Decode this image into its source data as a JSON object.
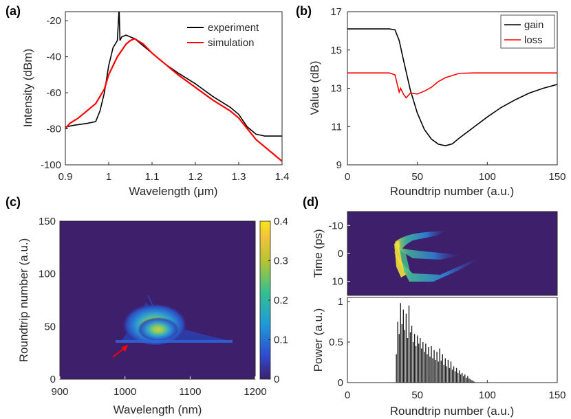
{
  "panels": {
    "a": "(a)",
    "b": "(b)",
    "c": "(c)",
    "d": "(d)"
  },
  "chart_data": [
    {
      "id": "a",
      "type": "line",
      "xlabel": "Wavelength (μm)",
      "ylabel": "Intensity (dBm)",
      "xlim": [
        0.9,
        1.4
      ],
      "ylim": [
        -100,
        -15
      ],
      "xticks": [
        "0.9",
        "1",
        "1.1",
        "1.2",
        "1.3",
        "1.4"
      ],
      "yticks": [
        "-100",
        "-80",
        "-60",
        "-40",
        "-20"
      ],
      "legend_position": "top-right",
      "series": [
        {
          "name": "experiment",
          "color": "#000000",
          "x": [
            0.9,
            0.92,
            0.95,
            0.97,
            0.98,
            0.99,
            1.0,
            1.01,
            1.02,
            1.024,
            1.026,
            1.03,
            1.04,
            1.05,
            1.06,
            1.08,
            1.1,
            1.13,
            1.16,
            1.2,
            1.24,
            1.28,
            1.3,
            1.32,
            1.34,
            1.36,
            1.38,
            1.4
          ],
          "y": [
            -79,
            -78,
            -77,
            -76,
            -70,
            -60,
            -45,
            -35,
            -31,
            -13,
            -31,
            -29,
            -28,
            -29,
            -30,
            -34,
            -38,
            -44,
            -49,
            -55,
            -62,
            -68,
            -72,
            -79,
            -83,
            -84,
            -84,
            -84
          ]
        },
        {
          "name": "simulation",
          "color": "#ff0000",
          "x": [
            0.9,
            0.91,
            0.93,
            0.95,
            0.97,
            0.98,
            0.99,
            1.0,
            1.02,
            1.04,
            1.05,
            1.06,
            1.08,
            1.1,
            1.13,
            1.16,
            1.2,
            1.24,
            1.28,
            1.3,
            1.32,
            1.34,
            1.36,
            1.38,
            1.4
          ],
          "y": [
            -80,
            -77,
            -74,
            -70,
            -66,
            -62,
            -58,
            -50,
            -40,
            -33,
            -31,
            -30,
            -33,
            -38,
            -44,
            -50,
            -57,
            -64,
            -70,
            -74,
            -80,
            -86,
            -90,
            -94,
            -98
          ]
        }
      ]
    },
    {
      "id": "b",
      "type": "line",
      "xlabel": "Roundtrip number (a.u.)",
      "ylabel": "Value (dB)",
      "xlim": [
        0,
        150
      ],
      "ylim": [
        9,
        17
      ],
      "xticks": [
        "0",
        "50",
        "100",
        "150"
      ],
      "yticks": [
        "9",
        "11",
        "13",
        "15",
        "17"
      ],
      "legend_position": "top-right",
      "series": [
        {
          "name": "gain",
          "color": "#000000",
          "x": [
            0,
            10,
            20,
            30,
            34,
            37,
            40,
            45,
            50,
            55,
            60,
            65,
            70,
            75,
            80,
            90,
            100,
            110,
            120,
            130,
            140,
            150
          ],
          "y": [
            16.1,
            16.1,
            16.1,
            16.1,
            16.05,
            15.5,
            14.5,
            12.9,
            11.7,
            10.85,
            10.35,
            10.08,
            10.0,
            10.1,
            10.4,
            10.95,
            11.5,
            12.0,
            12.4,
            12.75,
            13.0,
            13.2
          ]
        },
        {
          "name": "loss",
          "color": "#ff0000",
          "x": [
            0,
            10,
            20,
            30,
            34,
            36,
            37,
            38,
            40,
            42,
            45,
            50,
            55,
            60,
            65,
            70,
            80,
            90,
            100,
            120,
            150
          ],
          "y": [
            13.8,
            13.8,
            13.8,
            13.8,
            13.7,
            13.1,
            12.8,
            13.0,
            12.7,
            12.5,
            12.75,
            12.7,
            12.85,
            13.05,
            13.35,
            13.55,
            13.78,
            13.8,
            13.8,
            13.8,
            13.8
          ]
        }
      ]
    },
    {
      "id": "c",
      "type": "heatmap",
      "xlabel": "Wavelength (nm)",
      "ylabel": "Roundtrip number (a.u.)",
      "xlim": [
        900,
        1200
      ],
      "ylim": [
        0,
        150
      ],
      "xticks": [
        "900",
        "1000",
        "1100",
        "1200"
      ],
      "yticks": [
        "0",
        "50",
        "100",
        "150"
      ],
      "colorbar_range": [
        0,
        0.4
      ],
      "colorbar_ticks": [
        "0",
        "0.1",
        "0.2",
        "0.3",
        "0.4"
      ],
      "annotation": "red arrow pointing to onset near 1000 nm, roundtrip ~35"
    },
    {
      "id": "d_top",
      "type": "heatmap",
      "ylabel": "Time (ps)",
      "xlim": [
        0,
        150
      ],
      "ylim": [
        -15,
        15
      ],
      "yticks": [
        "-10",
        "0",
        "10"
      ]
    },
    {
      "id": "d_bottom",
      "type": "bar",
      "xlabel": "Roundtrip number (a.u.)",
      "ylabel": "Power (a.u.)",
      "xlim": [
        0,
        150
      ],
      "ylim": [
        0,
        1.05
      ],
      "xticks": [
        "0",
        "50",
        "100",
        "150"
      ],
      "yticks": [
        "0",
        "0.5",
        "1"
      ],
      "x": [
        35,
        36,
        37,
        38,
        39,
        40,
        41,
        42,
        43,
        44,
        45,
        46,
        47,
        48,
        49,
        50,
        51,
        52,
        53,
        54,
        55,
        56,
        57,
        58,
        59,
        60,
        61,
        62,
        63,
        64,
        65,
        66,
        67,
        68,
        69,
        70,
        71,
        72,
        73,
        74,
        75,
        76,
        77,
        78,
        79,
        80,
        81,
        82,
        83,
        84,
        85,
        86,
        87,
        88,
        89,
        90,
        91
      ],
      "values": [
        0.35,
        0.75,
        0.6,
        0.98,
        0.72,
        0.9,
        0.65,
        0.85,
        0.55,
        0.95,
        0.62,
        0.7,
        0.5,
        0.6,
        0.45,
        0.58,
        0.48,
        0.55,
        0.42,
        0.5,
        0.38,
        0.48,
        0.35,
        0.44,
        0.32,
        0.45,
        0.3,
        0.4,
        0.28,
        0.38,
        0.26,
        0.42,
        0.27,
        0.35,
        0.22,
        0.3,
        0.2,
        0.28,
        0.18,
        0.26,
        0.16,
        0.2,
        0.14,
        0.18,
        0.12,
        0.15,
        0.1,
        0.12,
        0.08,
        0.1,
        0.06,
        0.08,
        0.05,
        0.04,
        0.03,
        0.02,
        0.01
      ]
    }
  ]
}
